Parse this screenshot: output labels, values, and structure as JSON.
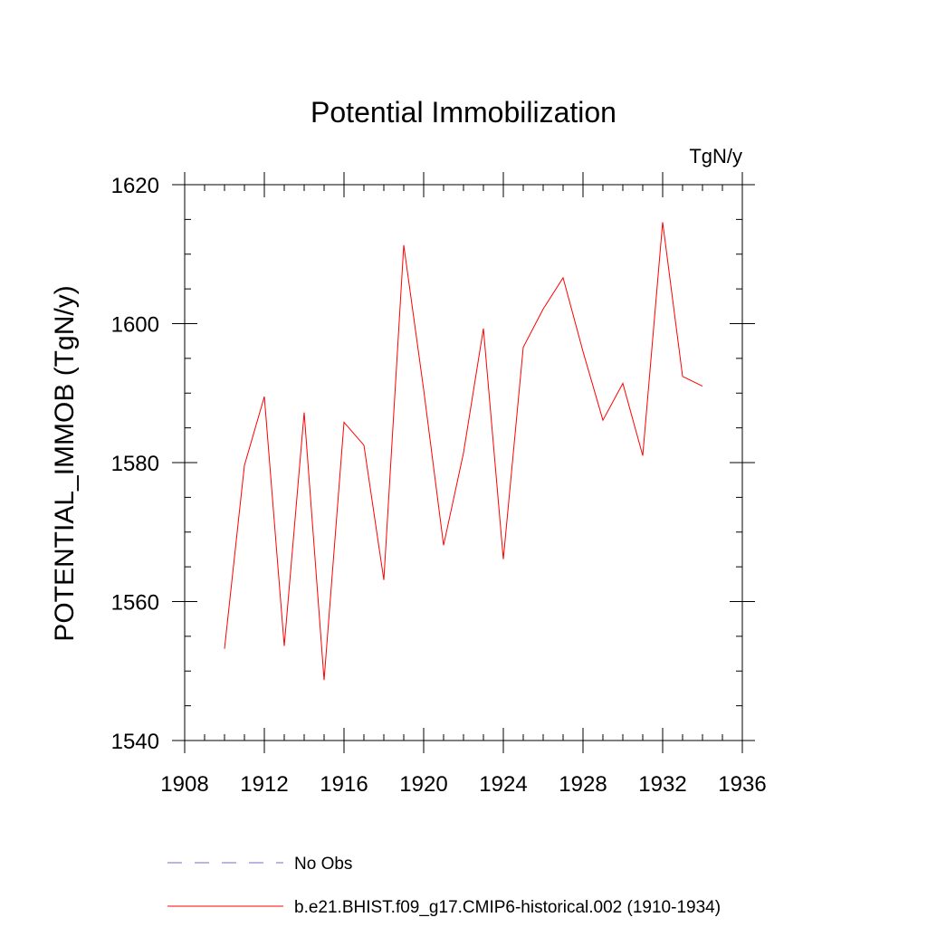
{
  "chart_data": {
    "type": "line",
    "title": "Potential Immobilization",
    "units": "TgN/y",
    "ylabel": "POTENTIAL_IMMOB  (TgN/y)",
    "xlabel": "",
    "xlim": [
      1908,
      1936
    ],
    "ylim": [
      1540,
      1620
    ],
    "x_ticks": [
      1908,
      1912,
      1916,
      1920,
      1924,
      1928,
      1932,
      1936
    ],
    "x_tick_labels": [
      "1908",
      "1912",
      "1916",
      "1920",
      "1924",
      "1928",
      "1932",
      "1936"
    ],
    "y_ticks": [
      1540,
      1560,
      1580,
      1600,
      1620
    ],
    "y_tick_labels": [
      "1540",
      "1560",
      "1580",
      "1600",
      "1620"
    ],
    "grid": false,
    "legend_position": "bottom",
    "series": [
      {
        "name": "b.e21.BHIST.f09_g17.CMIP6-historical.002 (1910-1934)",
        "color": "#ff0000",
        "style": "solid",
        "x": [
          1910,
          1911,
          1912,
          1913,
          1914,
          1915,
          1916,
          1917,
          1918,
          1919,
          1920,
          1921,
          1922,
          1923,
          1924,
          1925,
          1926,
          1927,
          1928,
          1929,
          1930,
          1931,
          1932,
          1933,
          1934
        ],
        "values": [
          1553.2,
          1579.6,
          1589.5,
          1553.6,
          1587.2,
          1548.7,
          1585.8,
          1582.5,
          1563.1,
          1611.3,
          1590.5,
          1568.1,
          1581.4,
          1599.3,
          1566.1,
          1596.6,
          1602.1,
          1606.6,
          1596.0,
          1586.1,
          1591.4,
          1581.0,
          1614.6,
          1592.4,
          1591.0
        ]
      }
    ],
    "legend": [
      {
        "label": "No Obs",
        "color": "#7b68c8",
        "style": "dashed"
      },
      {
        "label": "b.e21.BHIST.f09_g17.CMIP6-historical.002 (1910-1934)",
        "color": "#ff0000",
        "style": "solid"
      }
    ]
  }
}
